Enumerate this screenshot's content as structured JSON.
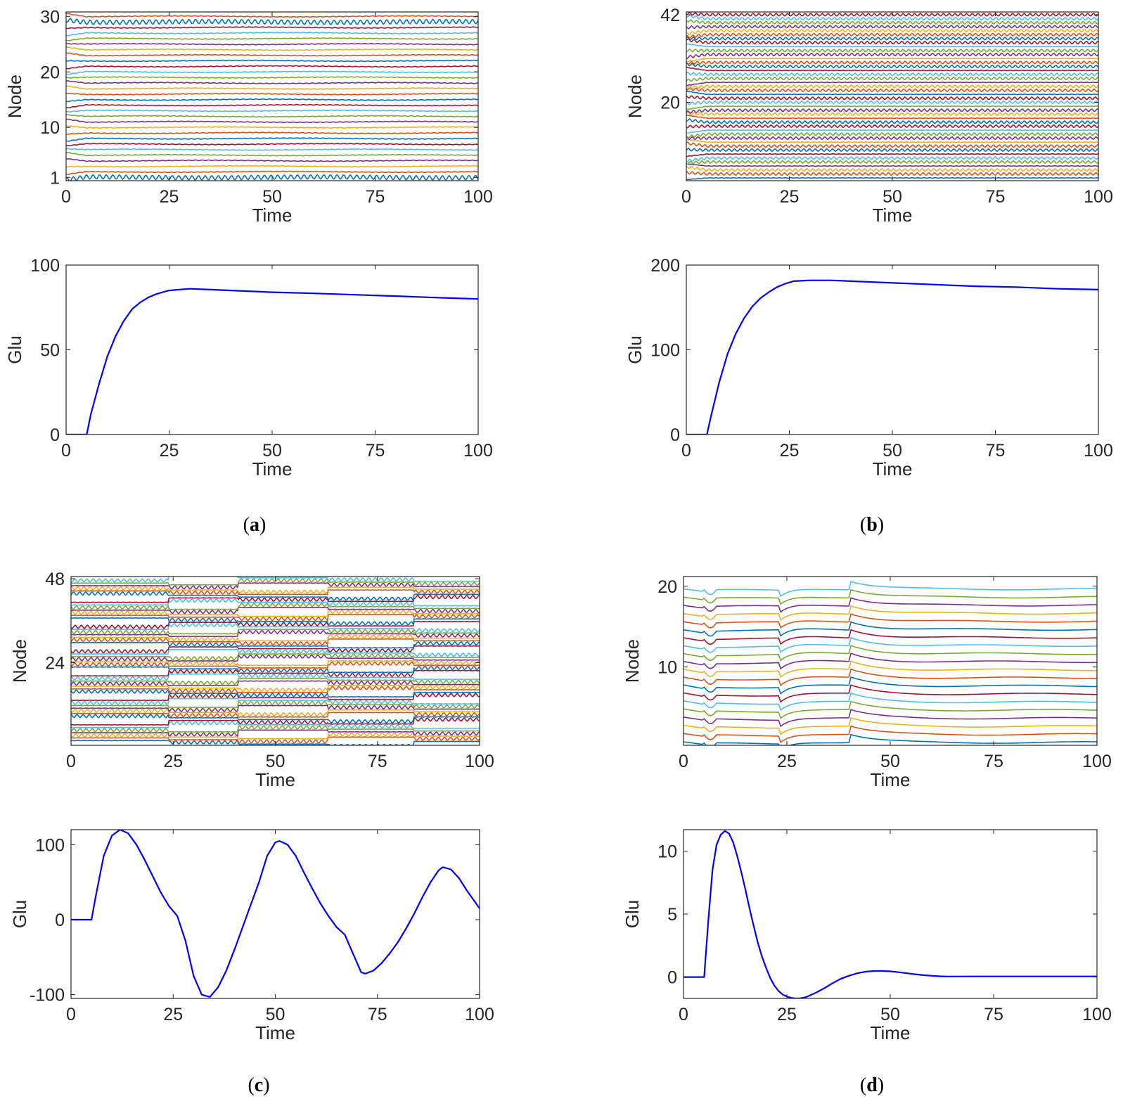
{
  "figure": {
    "panels": [
      {
        "letter": "a",
        "caption": {
          "open": "(",
          "letter": "a",
          "close": ")"
        }
      },
      {
        "letter": "b",
        "caption": {
          "open": "(",
          "letter": "b",
          "close": ")"
        }
      },
      {
        "letter": "c",
        "caption": {
          "open": "(",
          "letter": "c",
          "close": ")"
        }
      },
      {
        "letter": "d",
        "caption": {
          "open": "(",
          "letter": "d",
          "close": ")"
        }
      }
    ]
  },
  "chart_data": [
    {
      "id": "a-node",
      "panel": "a",
      "type": "line",
      "title": "",
      "xlabel": "Time",
      "ylabel": "Node",
      "xlim": [
        0,
        100
      ],
      "ylim": [
        0.4,
        30.8
      ],
      "xticks": [
        0,
        25,
        50,
        75,
        100
      ],
      "yticks": [
        1,
        10,
        20,
        30
      ],
      "xtick_labels": [
        "0",
        "25",
        "50",
        "75",
        "100"
      ],
      "ytick_labels": [
        "1",
        "10",
        "20",
        "30"
      ],
      "node_count": 30,
      "regime": "synchronized after transient at t≈5; nodes 1 and 29 oscillate with large amplitude, others nearly flat"
    },
    {
      "id": "a-glu",
      "panel": "a",
      "type": "line",
      "title": "",
      "xlabel": "Time",
      "ylabel": "Glu",
      "xlim": [
        0,
        100
      ],
      "ylim": [
        0,
        100
      ],
      "xticks": [
        0,
        25,
        50,
        75,
        100
      ],
      "yticks": [
        0,
        50,
        100
      ],
      "xtick_labels": [
        "0",
        "25",
        "50",
        "75",
        "100"
      ],
      "ytick_labels": [
        "0",
        "50",
        "100"
      ],
      "series": [
        {
          "name": "Glu",
          "color": "#0000ff",
          "x": [
            0,
            5,
            6,
            8,
            10,
            12,
            14,
            16,
            18,
            20,
            22,
            25,
            30,
            35,
            40,
            50,
            60,
            70,
            80,
            90,
            100
          ],
          "y": [
            0,
            0,
            12,
            30,
            46,
            58,
            67,
            74,
            78,
            81,
            83,
            85,
            86,
            85.5,
            85,
            84,
            83.3,
            82.5,
            81.7,
            80.8,
            80
          ]
        }
      ]
    },
    {
      "id": "b-node",
      "panel": "b",
      "type": "line",
      "title": "",
      "xlabel": "Time",
      "ylabel": "Node",
      "xlim": [
        0,
        100
      ],
      "ylim": [
        0.3,
        42.7
      ],
      "xticks": [
        0,
        25,
        50,
        75,
        100
      ],
      "yticks": [
        20,
        42
      ],
      "xtick_labels": [
        "0",
        "25",
        "50",
        "75",
        "100"
      ],
      "ytick_labels": [
        "20",
        "42"
      ],
      "node_count": 42,
      "regime": "synchronized after transient at t≈5; many nodes oscillate with high frequency"
    },
    {
      "id": "b-glu",
      "panel": "b",
      "type": "line",
      "title": "",
      "xlabel": "Time",
      "ylabel": "Glu",
      "xlim": [
        0,
        100
      ],
      "ylim": [
        0,
        200
      ],
      "xticks": [
        0,
        25,
        50,
        75,
        100
      ],
      "yticks": [
        0,
        100,
        200
      ],
      "xtick_labels": [
        "0",
        "25",
        "50",
        "75",
        "100"
      ],
      "ytick_labels": [
        "0",
        "100",
        "200"
      ],
      "series": [
        {
          "name": "Glu",
          "color": "#0000ff",
          "x": [
            0,
            5,
            6,
            8,
            10,
            12,
            14,
            16,
            18,
            20,
            22,
            24,
            26,
            30,
            35,
            40,
            50,
            60,
            70,
            80,
            90,
            100
          ],
          "y": [
            0,
            0,
            22,
            62,
            95,
            119,
            137,
            151,
            161,
            168,
            174,
            178,
            181,
            182,
            182,
            181,
            179,
            177,
            175,
            174,
            172,
            171
          ]
        }
      ]
    },
    {
      "id": "c-node",
      "panel": "c",
      "type": "line",
      "title": "",
      "xlabel": "Time",
      "ylabel": "Node",
      "xlim": [
        0,
        100
      ],
      "ylim": [
        0.4,
        48.6
      ],
      "xticks": [
        0,
        25,
        50,
        75,
        100
      ],
      "yticks": [
        24,
        48
      ],
      "xtick_labels": [
        "0",
        "25",
        "50",
        "75",
        "100"
      ],
      "ytick_labels": [
        "24",
        "48"
      ],
      "node_count": 48,
      "regime": "switching between oscillatory and flat states at t≈24, 41, 63, 84"
    },
    {
      "id": "c-glu",
      "panel": "c",
      "type": "line",
      "title": "",
      "xlabel": "Time",
      "ylabel": "Glu",
      "xlim": [
        0,
        100
      ],
      "ylim": [
        -105,
        120
      ],
      "xticks": [
        0,
        25,
        50,
        75,
        100
      ],
      "yticks": [
        -100,
        0,
        100
      ],
      "xtick_labels": [
        "0",
        "25",
        "50",
        "75",
        "100"
      ],
      "ytick_labels": [
        "-100",
        "0",
        "100"
      ],
      "series": [
        {
          "name": "Glu",
          "color": "#0000ff",
          "x": [
            0,
            5,
            6,
            8,
            10,
            12,
            14,
            16,
            18,
            20,
            22,
            24,
            26,
            28,
            30,
            32,
            34,
            36,
            38,
            40,
            42,
            44,
            46,
            48,
            50,
            51,
            53,
            55,
            57,
            59,
            61,
            63,
            65,
            67,
            69,
            71,
            72,
            74,
            76,
            78,
            80,
            82,
            84,
            86,
            88,
            90,
            91,
            93,
            95,
            97,
            100
          ],
          "y": [
            0,
            0,
            30,
            85,
            112,
            120,
            115,
            100,
            80,
            58,
            36,
            18,
            5,
            -28,
            -75,
            -100,
            -103,
            -90,
            -68,
            -40,
            -10,
            20,
            50,
            85,
            103,
            105,
            100,
            85,
            63,
            42,
            22,
            5,
            -10,
            -20,
            -45,
            -70,
            -72,
            -68,
            -58,
            -45,
            -30,
            -12,
            8,
            30,
            50,
            66,
            70,
            67,
            55,
            38,
            15
          ]
        }
      ]
    },
    {
      "id": "d-node",
      "panel": "d",
      "type": "line",
      "title": "",
      "xlabel": "Time",
      "ylabel": "Node",
      "xlim": [
        0,
        100
      ],
      "ylim": [
        0.3,
        21.2
      ],
      "xticks": [
        0,
        25,
        50,
        75,
        100
      ],
      "yticks": [
        10,
        20
      ],
      "xtick_labels": [
        "0",
        "25",
        "50",
        "75",
        "100"
      ],
      "ytick_labels": [
        "10",
        "20"
      ],
      "node_count": 20,
      "regime": "all nodes flat (non-oscillatory) with common transients at t≈5, 24, 40"
    },
    {
      "id": "d-glu",
      "panel": "d",
      "type": "line",
      "title": "",
      "xlabel": "Time",
      "ylabel": "Glu",
      "xlim": [
        0,
        100
      ],
      "ylim": [
        -1.7,
        11.7
      ],
      "xticks": [
        0,
        25,
        50,
        75,
        100
      ],
      "yticks": [
        0,
        5,
        10
      ],
      "xtick_labels": [
        "0",
        "25",
        "50",
        "75",
        "100"
      ],
      "ytick_labels": [
        "0",
        "5",
        "10"
      ],
      "series": [
        {
          "name": "Glu",
          "color": "#0000ff",
          "x": [
            0,
            5,
            6,
            7,
            8,
            9,
            10,
            11,
            12,
            13,
            14,
            15,
            16,
            17,
            18,
            19,
            20,
            21,
            22,
            23,
            24,
            25,
            26,
            27,
            28,
            29,
            30,
            32,
            34,
            36,
            38,
            40,
            42,
            44,
            46,
            48,
            50,
            52,
            54,
            56,
            58,
            60,
            62,
            64,
            70,
            80,
            90,
            100
          ],
          "y": [
            0,
            0,
            4.5,
            8.5,
            10.5,
            11.3,
            11.6,
            11.4,
            10.7,
            9.6,
            8.3,
            6.9,
            5.4,
            4.0,
            2.7,
            1.6,
            0.7,
            -0.1,
            -0.7,
            -1.1,
            -1.4,
            -1.55,
            -1.65,
            -1.7,
            -1.7,
            -1.65,
            -1.55,
            -1.25,
            -0.9,
            -0.5,
            -0.15,
            0.1,
            0.3,
            0.42,
            0.48,
            0.48,
            0.45,
            0.38,
            0.3,
            0.22,
            0.15,
            0.1,
            0.06,
            0.04,
            0.05,
            0.05,
            0.05,
            0.05
          ]
        }
      ]
    }
  ],
  "colors": [
    "#0072bd",
    "#d95319",
    "#edb120",
    "#7e2f8e",
    "#77ac30",
    "#4dbeee",
    "#a2142f"
  ],
  "glu_color": "#0000ff",
  "axis_color": "#262626"
}
